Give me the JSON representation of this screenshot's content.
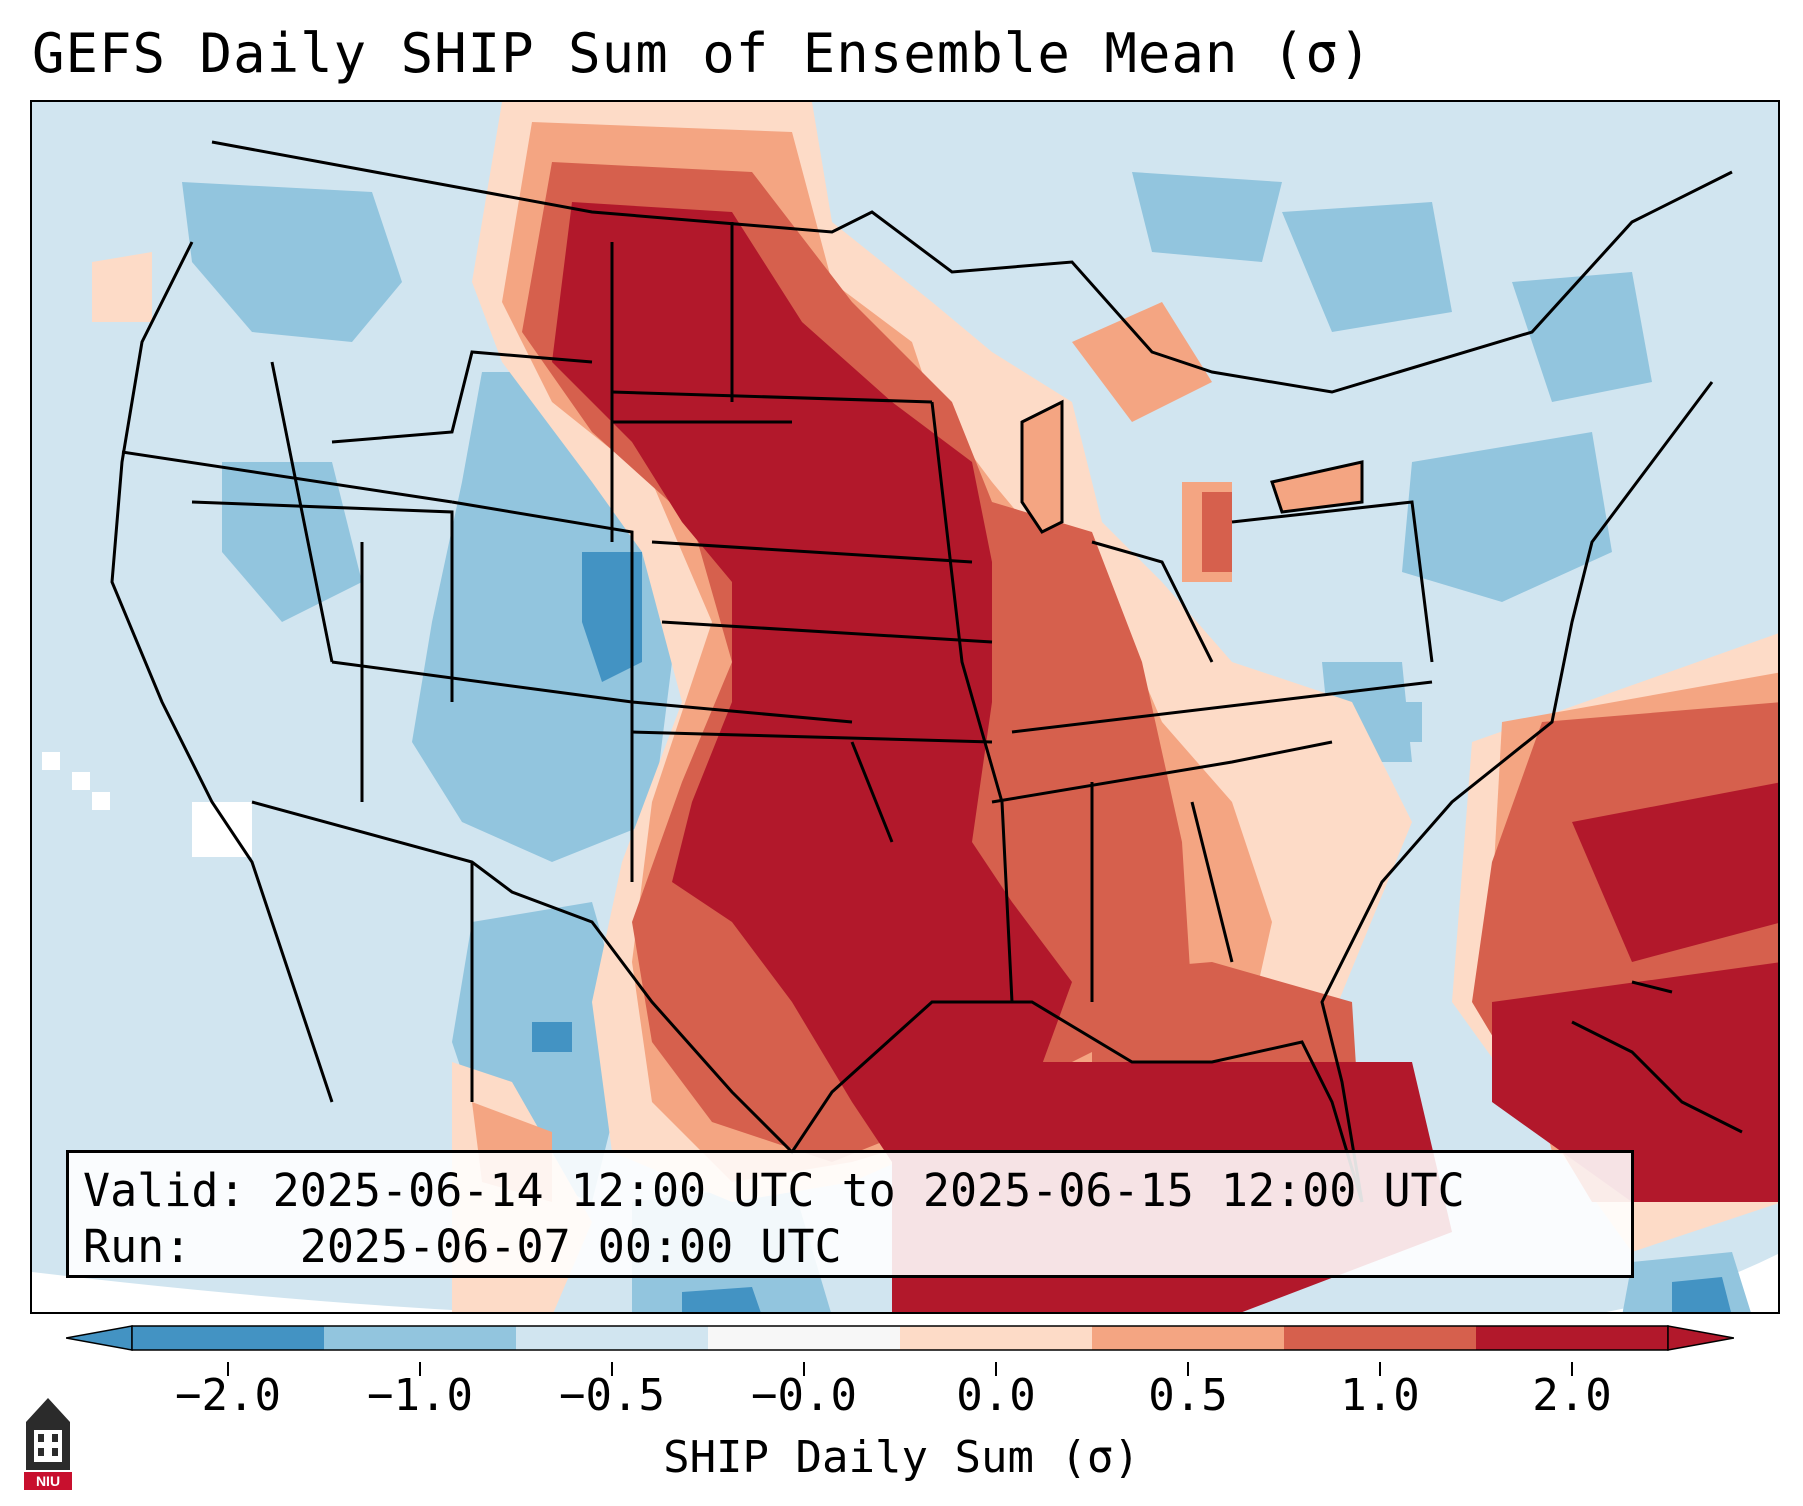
{
  "title": "GEFS Daily SHIP Sum of Ensemble Mean (σ)",
  "info": {
    "valid_label": "Valid:",
    "valid_value": "2025-06-14 12:00 UTC to 2025-06-15 12:00 UTC",
    "run_label": "Run:",
    "run_value": "2025-06-07 00:00 UTC"
  },
  "colorbar": {
    "label": "SHIP Daily Sum (σ)",
    "ticks": [
      "−2.0",
      "−1.0",
      "−0.5",
      "−0.0",
      "0.0",
      "0.5",
      "1.0",
      "2.0"
    ],
    "colors": [
      "#4393c3",
      "#92c5de",
      "#d1e5f0",
      "#f7f7f7",
      "#fddbc7",
      "#f4a582",
      "#d6604d",
      "#b2182b"
    ],
    "extend": "both"
  },
  "map": {
    "region": "Contiguous United States",
    "field": "SHIP daily sum anomaly",
    "palette": {
      "strong_negative": "#4393c3",
      "negative": "#92c5de",
      "weak_negative": "#d1e5f0",
      "neutral": "#ffffff",
      "weak_positive": "#fddbc7",
      "positive": "#f4a582",
      "strong_positive": "#d6604d",
      "extreme_positive": "#b2182b"
    }
  },
  "logo": {
    "text": "NIU",
    "color": "#c8102e"
  }
}
